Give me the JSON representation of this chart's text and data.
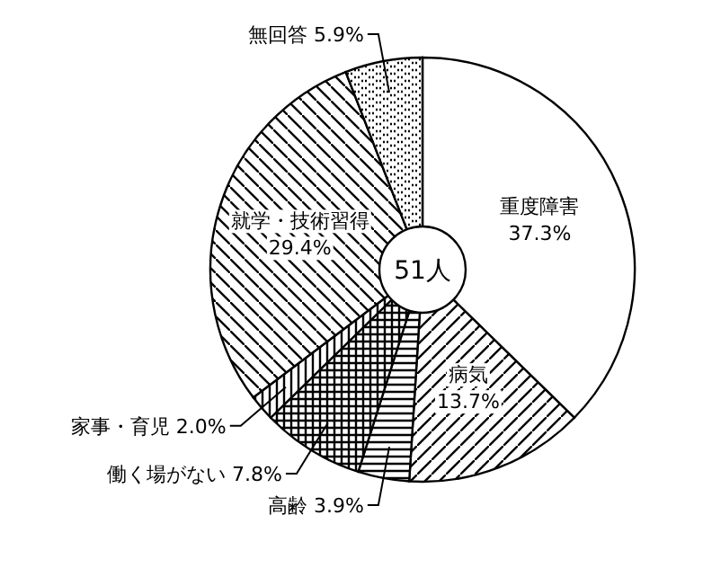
{
  "chart_data": {
    "type": "donut",
    "categories": [
      "重度障害",
      "病気",
      "高齢",
      "働く場がない",
      "家事・育児",
      "就学・技術習得",
      "無回答"
    ],
    "values": [
      37.3,
      13.7,
      3.9,
      7.8,
      2.0,
      29.4,
      5.9
    ],
    "value_labels": [
      "37.3%",
      "13.7%",
      "3.9%",
      "7.8%",
      "2.0%",
      "29.4%",
      "5.9%"
    ],
    "colors": [
      "#ffffff",
      "#000000",
      "#000000",
      "#000000",
      "#000000",
      "#000000",
      "#000000"
    ],
    "annotations": [
      "51人"
    ]
  }
}
